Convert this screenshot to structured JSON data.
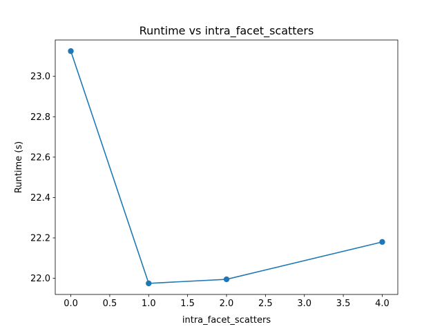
{
  "chart_data": {
    "type": "line",
    "title": "Runtime vs intra_facet_scatters",
    "xlabel": "intra_facet_scatters",
    "ylabel": "Runtime (s)",
    "xlim": [
      -0.2,
      4.2
    ],
    "ylim": [
      21.92,
      23.18
    ],
    "grid": false,
    "x_ticks": [
      0.0,
      0.5,
      1.0,
      1.5,
      2.0,
      2.5,
      3.0,
      3.5,
      4.0
    ],
    "x_tick_labels": [
      "0.0",
      "0.5",
      "1.0",
      "1.5",
      "2.0",
      "2.5",
      "3.0",
      "3.5",
      "4.0"
    ],
    "y_ticks": [
      22.0,
      22.2,
      22.4,
      22.6,
      22.8,
      23.0
    ],
    "y_tick_labels": [
      "22.0",
      "22.2",
      "22.4",
      "22.6",
      "22.8",
      "23.0"
    ],
    "series": [
      {
        "color": "#1f77b4",
        "marker": "circle",
        "x": [
          0,
          1,
          2,
          4
        ],
        "y": [
          23.125,
          21.975,
          21.995,
          22.18
        ]
      }
    ]
  }
}
